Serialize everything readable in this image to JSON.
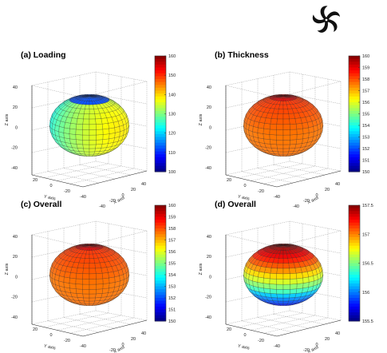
{
  "logo_icon": "pinwheel-logo",
  "panels": [
    {
      "title": "(a) Loading",
      "colorbar": {
        "ticks": [
          "160",
          "150",
          "140",
          "130",
          "120",
          "110",
          "100"
        ],
        "min": 100,
        "max": 160,
        "colormap": "jet"
      },
      "surface": "loading",
      "axes": {
        "xlabel": "X axis",
        "ylabel": "Y axis",
        "zlabel": "Z axis",
        "zticks": [
          "40",
          "20",
          "0",
          "-20",
          "-40"
        ],
        "yticks": [
          "20",
          "0",
          "-20",
          "-40"
        ],
        "xticks": [
          "-40",
          "-20",
          "0",
          "20",
          "40"
        ]
      }
    },
    {
      "title": "(b) Thickness",
      "colorbar": {
        "ticks": [
          "160",
          "159",
          "158",
          "157",
          "156",
          "155",
          "154",
          "153",
          "152",
          "151",
          "150"
        ],
        "min": 150,
        "max": 160,
        "colormap": "jet"
      },
      "surface": "thickness",
      "axes": {
        "xlabel": "X axis",
        "ylabel": "Y axis",
        "zlabel": "Z axis",
        "zticks": [
          "40",
          "20",
          "0",
          "-20",
          "-40"
        ],
        "yticks": [
          "20",
          "0",
          "-20",
          "-40"
        ],
        "xticks": [
          "-40",
          "-20",
          "0",
          "20",
          "40"
        ]
      }
    },
    {
      "title": "(c) Overall",
      "colorbar": {
        "ticks": [
          "160",
          "159",
          "158",
          "157",
          "156",
          "155",
          "154",
          "153",
          "152",
          "151",
          "150"
        ],
        "min": 150,
        "max": 160,
        "colormap": "jet"
      },
      "surface": "thickness",
      "axes": {
        "xlabel": "X axis",
        "ylabel": "Y axis",
        "zlabel": "Z axis",
        "zticks": [
          "40",
          "20",
          "0",
          "-20",
          "-40"
        ],
        "yticks": [
          "20",
          "0",
          "-20",
          "-40"
        ],
        "xticks": [
          "-40",
          "-20",
          "0",
          "20",
          "40"
        ]
      }
    },
    {
      "title": "(d) Overall",
      "colorbar": {
        "ticks": [
          "157.5",
          "157",
          "156.5",
          "156",
          "155.5"
        ],
        "min": 155.5,
        "max": 157.5,
        "colormap": "jet"
      },
      "surface": "overall",
      "axes": {
        "xlabel": "X axis",
        "ylabel": "Y axis",
        "zlabel": "Z axis",
        "zticks": [
          "40",
          "20",
          "0",
          "-20",
          "-40"
        ],
        "yticks": [
          "20",
          "0",
          "-20",
          "-40"
        ],
        "xticks": [
          "-40",
          "-20",
          "0",
          "20",
          "40"
        ]
      }
    }
  ]
}
